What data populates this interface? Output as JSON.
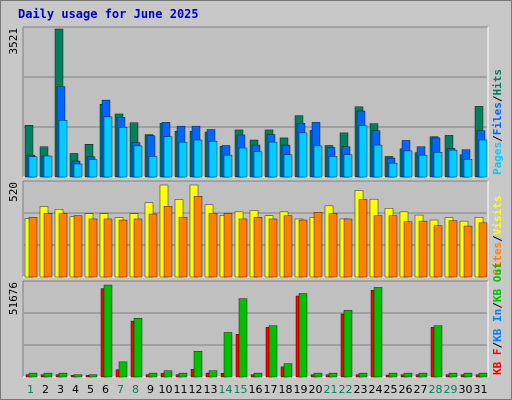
{
  "title": "Daily usage for June 2025",
  "colors": {
    "hits": "#00805c",
    "files": "#0066ff",
    "pages": "#00ccff",
    "visits": "#ffff00",
    "sites": "#ff8000",
    "kb_in": "#0080ff",
    "kb_out": "#00c000",
    "kb_f": "#ff0000",
    "weekend": "#00805c",
    "weekday": "#000000",
    "plot_bg": "#c0c0c0"
  },
  "chart_data": [
    {
      "type": "bar",
      "panel": "hits-files-pages",
      "categories": [
        "1",
        "2",
        "3",
        "4",
        "5",
        "6",
        "7",
        "8",
        "9",
        "10",
        "11",
        "12",
        "13",
        "14",
        "15",
        "16",
        "17",
        "18",
        "19",
        "20",
        "21",
        "22",
        "23",
        "24",
        "25",
        "26",
        "27",
        "28",
        "29",
        "30",
        "31"
      ],
      "scale_label": "3521",
      "ylim": [
        0,
        3521
      ],
      "grid": true,
      "legend": {
        "position": "right",
        "labels": [
          "Hits",
          "/",
          "Files",
          "/",
          "Pages"
        ]
      },
      "series": [
        {
          "name": "Hits",
          "values": [
            1230,
            720,
            3521,
            560,
            780,
            1730,
            1500,
            1290,
            1010,
            1280,
            1090,
            1090,
            1070,
            730,
            1120,
            880,
            1120,
            930,
            1460,
            1110,
            750,
            1050,
            1670,
            1270,
            490,
            670,
            580,
            960,
            990,
            530,
            1680
          ]
        },
        {
          "name": "Files",
          "values": [
            520,
            500,
            2150,
            380,
            480,
            1830,
            1420,
            820,
            980,
            1300,
            1210,
            1210,
            1130,
            750,
            1000,
            760,
            1010,
            760,
            1280,
            1300,
            700,
            720,
            1570,
            1100,
            450,
            870,
            720,
            930,
            680,
            650,
            1100
          ]
        },
        {
          "name": "Pages",
          "values": [
            480,
            500,
            1350,
            310,
            410,
            1430,
            1180,
            740,
            490,
            960,
            830,
            880,
            850,
            520,
            690,
            600,
            830,
            530,
            1050,
            740,
            490,
            530,
            1220,
            760,
            330,
            620,
            520,
            590,
            640,
            420,
            880
          ]
        }
      ]
    },
    {
      "type": "bar",
      "panel": "visits-sites",
      "categories": [
        "1",
        "2",
        "3",
        "4",
        "5",
        "6",
        "7",
        "8",
        "9",
        "10",
        "11",
        "12",
        "13",
        "14",
        "15",
        "16",
        "17",
        "18",
        "19",
        "20",
        "21",
        "22",
        "23",
        "24",
        "25",
        "26",
        "27",
        "28",
        "29",
        "30",
        "31"
      ],
      "scale_label": "520",
      "ylim": [
        0,
        520
      ],
      "grid": true,
      "legend": {
        "position": "right",
        "labels": [
          "Visits",
          "/",
          "Sites"
        ]
      },
      "series": [
        {
          "name": "Visits",
          "values": [
            330,
            398,
            382,
            340,
            358,
            358,
            336,
            358,
            420,
            520,
            438,
            520,
            408,
            348,
            368,
            376,
            346,
            368,
            328,
            338,
            402,
            328,
            488,
            440,
            388,
            368,
            350,
            322,
            336,
            316,
            338
          ]
        },
        {
          "name": "Sites",
          "values": [
            338,
            360,
            358,
            346,
            328,
            328,
            322,
            328,
            356,
            400,
            338,
            456,
            360,
            360,
            328,
            338,
            328,
            346,
            322,
            366,
            358,
            328,
            438,
            346,
            346,
            312,
            316,
            290,
            318,
            288,
            306
          ]
        }
      ]
    },
    {
      "type": "bar",
      "panel": "kbytes",
      "categories": [
        "1",
        "2",
        "3",
        "4",
        "5",
        "6",
        "7",
        "8",
        "9",
        "10",
        "11",
        "12",
        "13",
        "14",
        "15",
        "16",
        "17",
        "18",
        "19",
        "20",
        "21",
        "22",
        "23",
        "24",
        "25",
        "26",
        "27",
        "28",
        "29",
        "30",
        "31"
      ],
      "scale_label": "51676",
      "ylim": [
        0,
        51676
      ],
      "grid": true,
      "legend": {
        "position": "right",
        "labels": [
          "KB F",
          "/",
          "KB In",
          "/",
          "KB Out"
        ]
      },
      "series": [
        {
          "name": "KB F",
          "values": [
            1300,
            1300,
            1300,
            900,
            900,
            49676,
            4100,
            31400,
            1300,
            2000,
            1300,
            4300,
            2200,
            2100,
            24000,
            1300,
            27900,
            5700,
            45500,
            1300,
            1300,
            35400,
            1300,
            48700,
            1100,
            1300,
            1300,
            27900,
            1300,
            1300,
            1300
          ]
        },
        {
          "name": "KB Out",
          "values": [
            2200,
            2200,
            2200,
            1300,
            1300,
            51676,
            8500,
            33000,
            2200,
            3500,
            2200,
            14500,
            3500,
            25000,
            44000,
            2200,
            28800,
            7500,
            46900,
            2200,
            2200,
            37500,
            2200,
            50300,
            2200,
            2200,
            2200,
            28800,
            2200,
            2200,
            2200
          ]
        }
      ]
    }
  ]
}
